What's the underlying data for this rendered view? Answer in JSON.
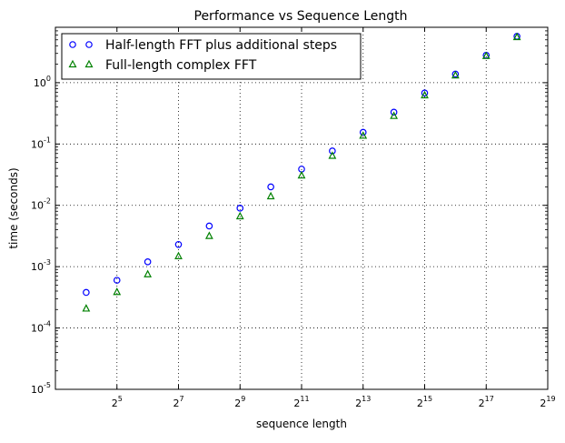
{
  "chart_data": {
    "type": "scatter",
    "title": "Performance vs Sequence Length",
    "xlabel": "sequence length",
    "ylabel": "time (seconds)",
    "x_scale": "log2",
    "y_scale": "log10",
    "xlim": [
      8,
      524288
    ],
    "ylim": [
      1e-05,
      8
    ],
    "grid": true,
    "legend_position": "top-left",
    "x_ticks": [
      {
        "value": 32,
        "base": "2",
        "exp": "5"
      },
      {
        "value": 128,
        "base": "2",
        "exp": "7"
      },
      {
        "value": 512,
        "base": "2",
        "exp": "9"
      },
      {
        "value": 2048,
        "base": "2",
        "exp": "11"
      },
      {
        "value": 8192,
        "base": "2",
        "exp": "13"
      },
      {
        "value": 32768,
        "base": "2",
        "exp": "15"
      },
      {
        "value": 131072,
        "base": "2",
        "exp": "17"
      },
      {
        "value": 524288,
        "base": "2",
        "exp": "19"
      }
    ],
    "y_ticks": [
      {
        "value": 1e-05,
        "base": "10",
        "exp": "-5"
      },
      {
        "value": 0.0001,
        "base": "10",
        "exp": "-4"
      },
      {
        "value": 0.001,
        "base": "10",
        "exp": "-3"
      },
      {
        "value": 0.01,
        "base": "10",
        "exp": "-2"
      },
      {
        "value": 0.1,
        "base": "10",
        "exp": "-1"
      },
      {
        "value": 1,
        "base": "10",
        "exp": "0"
      }
    ],
    "x": [
      16,
      32,
      64,
      128,
      256,
      512,
      1024,
      2048,
      4096,
      8192,
      16384,
      32768,
      65536,
      131072,
      262144
    ],
    "series": [
      {
        "name": "Half-length FFT plus additional steps",
        "marker": "circle",
        "color": "#0000ff",
        "values": [
          0.00038,
          0.0006,
          0.0012,
          0.0023,
          0.0046,
          0.009,
          0.02,
          0.039,
          0.077,
          0.155,
          0.33,
          0.68,
          1.38,
          2.8,
          5.7
        ]
      },
      {
        "name": "Full-length complex FFT",
        "marker": "triangle",
        "color": "#008000",
        "values": [
          0.00021,
          0.00039,
          0.00076,
          0.0015,
          0.0032,
          0.0067,
          0.0142,
          0.031,
          0.065,
          0.138,
          0.29,
          0.63,
          1.33,
          2.75,
          5.6
        ]
      }
    ]
  }
}
